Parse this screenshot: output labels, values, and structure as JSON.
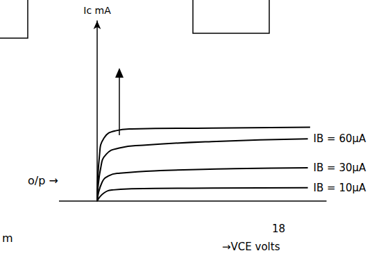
{
  "chart_data": {
    "type": "line",
    "x_label": "→VCE volts",
    "y_label": "Ic mA",
    "xlim": [
      0,
      10
    ],
    "ylim": [
      0,
      10
    ],
    "tick_labels": false,
    "grid": false,
    "color": "#000000",
    "series": [
      {
        "x": [
          0,
          0.1,
          0.3,
          0.8,
          1.5,
          5,
          9.3
        ],
        "values": [
          0,
          2.5,
          3.5,
          3.9,
          4.0,
          4.05,
          4.1
        ]
      },
      {
        "name": "IB = 60µA",
        "x": [
          0,
          0.15,
          0.4,
          1,
          2,
          5,
          9.2
        ],
        "values": [
          0,
          1.8,
          2.6,
          2.95,
          3.1,
          3.3,
          3.45
        ]
      },
      {
        "name": "IB = 30µA",
        "x": [
          0,
          0.2,
          0.5,
          1,
          3,
          6,
          9.2
        ],
        "values": [
          0,
          1.0,
          1.4,
          1.55,
          1.7,
          1.8,
          1.85
        ]
      },
      {
        "name": "IB = 10µA",
        "x": [
          0,
          0.3,
          0.7,
          1.5,
          5,
          9.2
        ],
        "values": [
          0,
          0.45,
          0.62,
          0.68,
          0.72,
          0.74
        ]
      }
    ],
    "annotations": [
      "o/p →",
      "m",
      "18"
    ]
  }
}
